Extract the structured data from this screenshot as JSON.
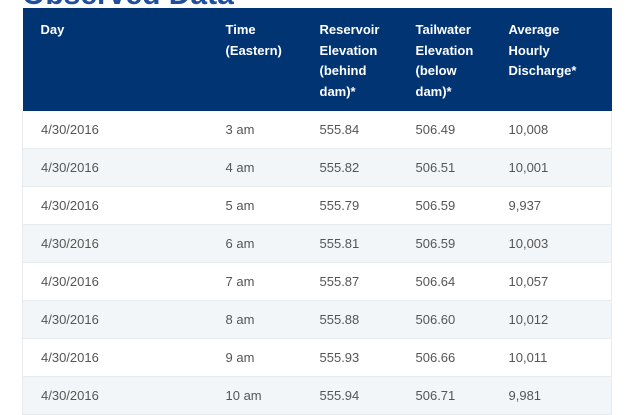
{
  "title": "Observed Data",
  "headers": [
    "Day",
    "Time (Eastern)",
    "Reservoir Elevation (behind dam)*",
    "Tailwater Elevation (below dam)*",
    "Average Hourly Discharge*"
  ],
  "header_lines": [
    [
      "Day"
    ],
    [
      "Time",
      "(Eastern)"
    ],
    [
      "Reservoir",
      "Elevation",
      "(behind",
      "dam)*"
    ],
    [
      "Tailwater",
      "Elevation",
      "(below",
      "dam)*"
    ],
    [
      "Average",
      "Hourly",
      "Discharge*"
    ]
  ],
  "rows": [
    [
      "4/30/2016",
      "3 am",
      "555.84",
      "506.49",
      "10,008"
    ],
    [
      "4/30/2016",
      "4 am",
      "555.82",
      "506.51",
      "10,001"
    ],
    [
      "4/30/2016",
      "5 am",
      "555.79",
      "506.59",
      "9,937"
    ],
    [
      "4/30/2016",
      "6 am",
      "555.81",
      "506.59",
      "10,003"
    ],
    [
      "4/30/2016",
      "7 am",
      "555.87",
      "506.64",
      "10,057"
    ],
    [
      "4/30/2016",
      "8 am",
      "555.88",
      "506.60",
      "10,012"
    ],
    [
      "4/30/2016",
      "9 am",
      "555.93",
      "506.66",
      "10,011"
    ],
    [
      "4/30/2016",
      "10 am",
      "555.94",
      "506.71",
      "9,981"
    ]
  ],
  "colors": {
    "header_bg": "#003473",
    "title": "#1f4f9c",
    "alt_row": "#f3f6f9"
  }
}
